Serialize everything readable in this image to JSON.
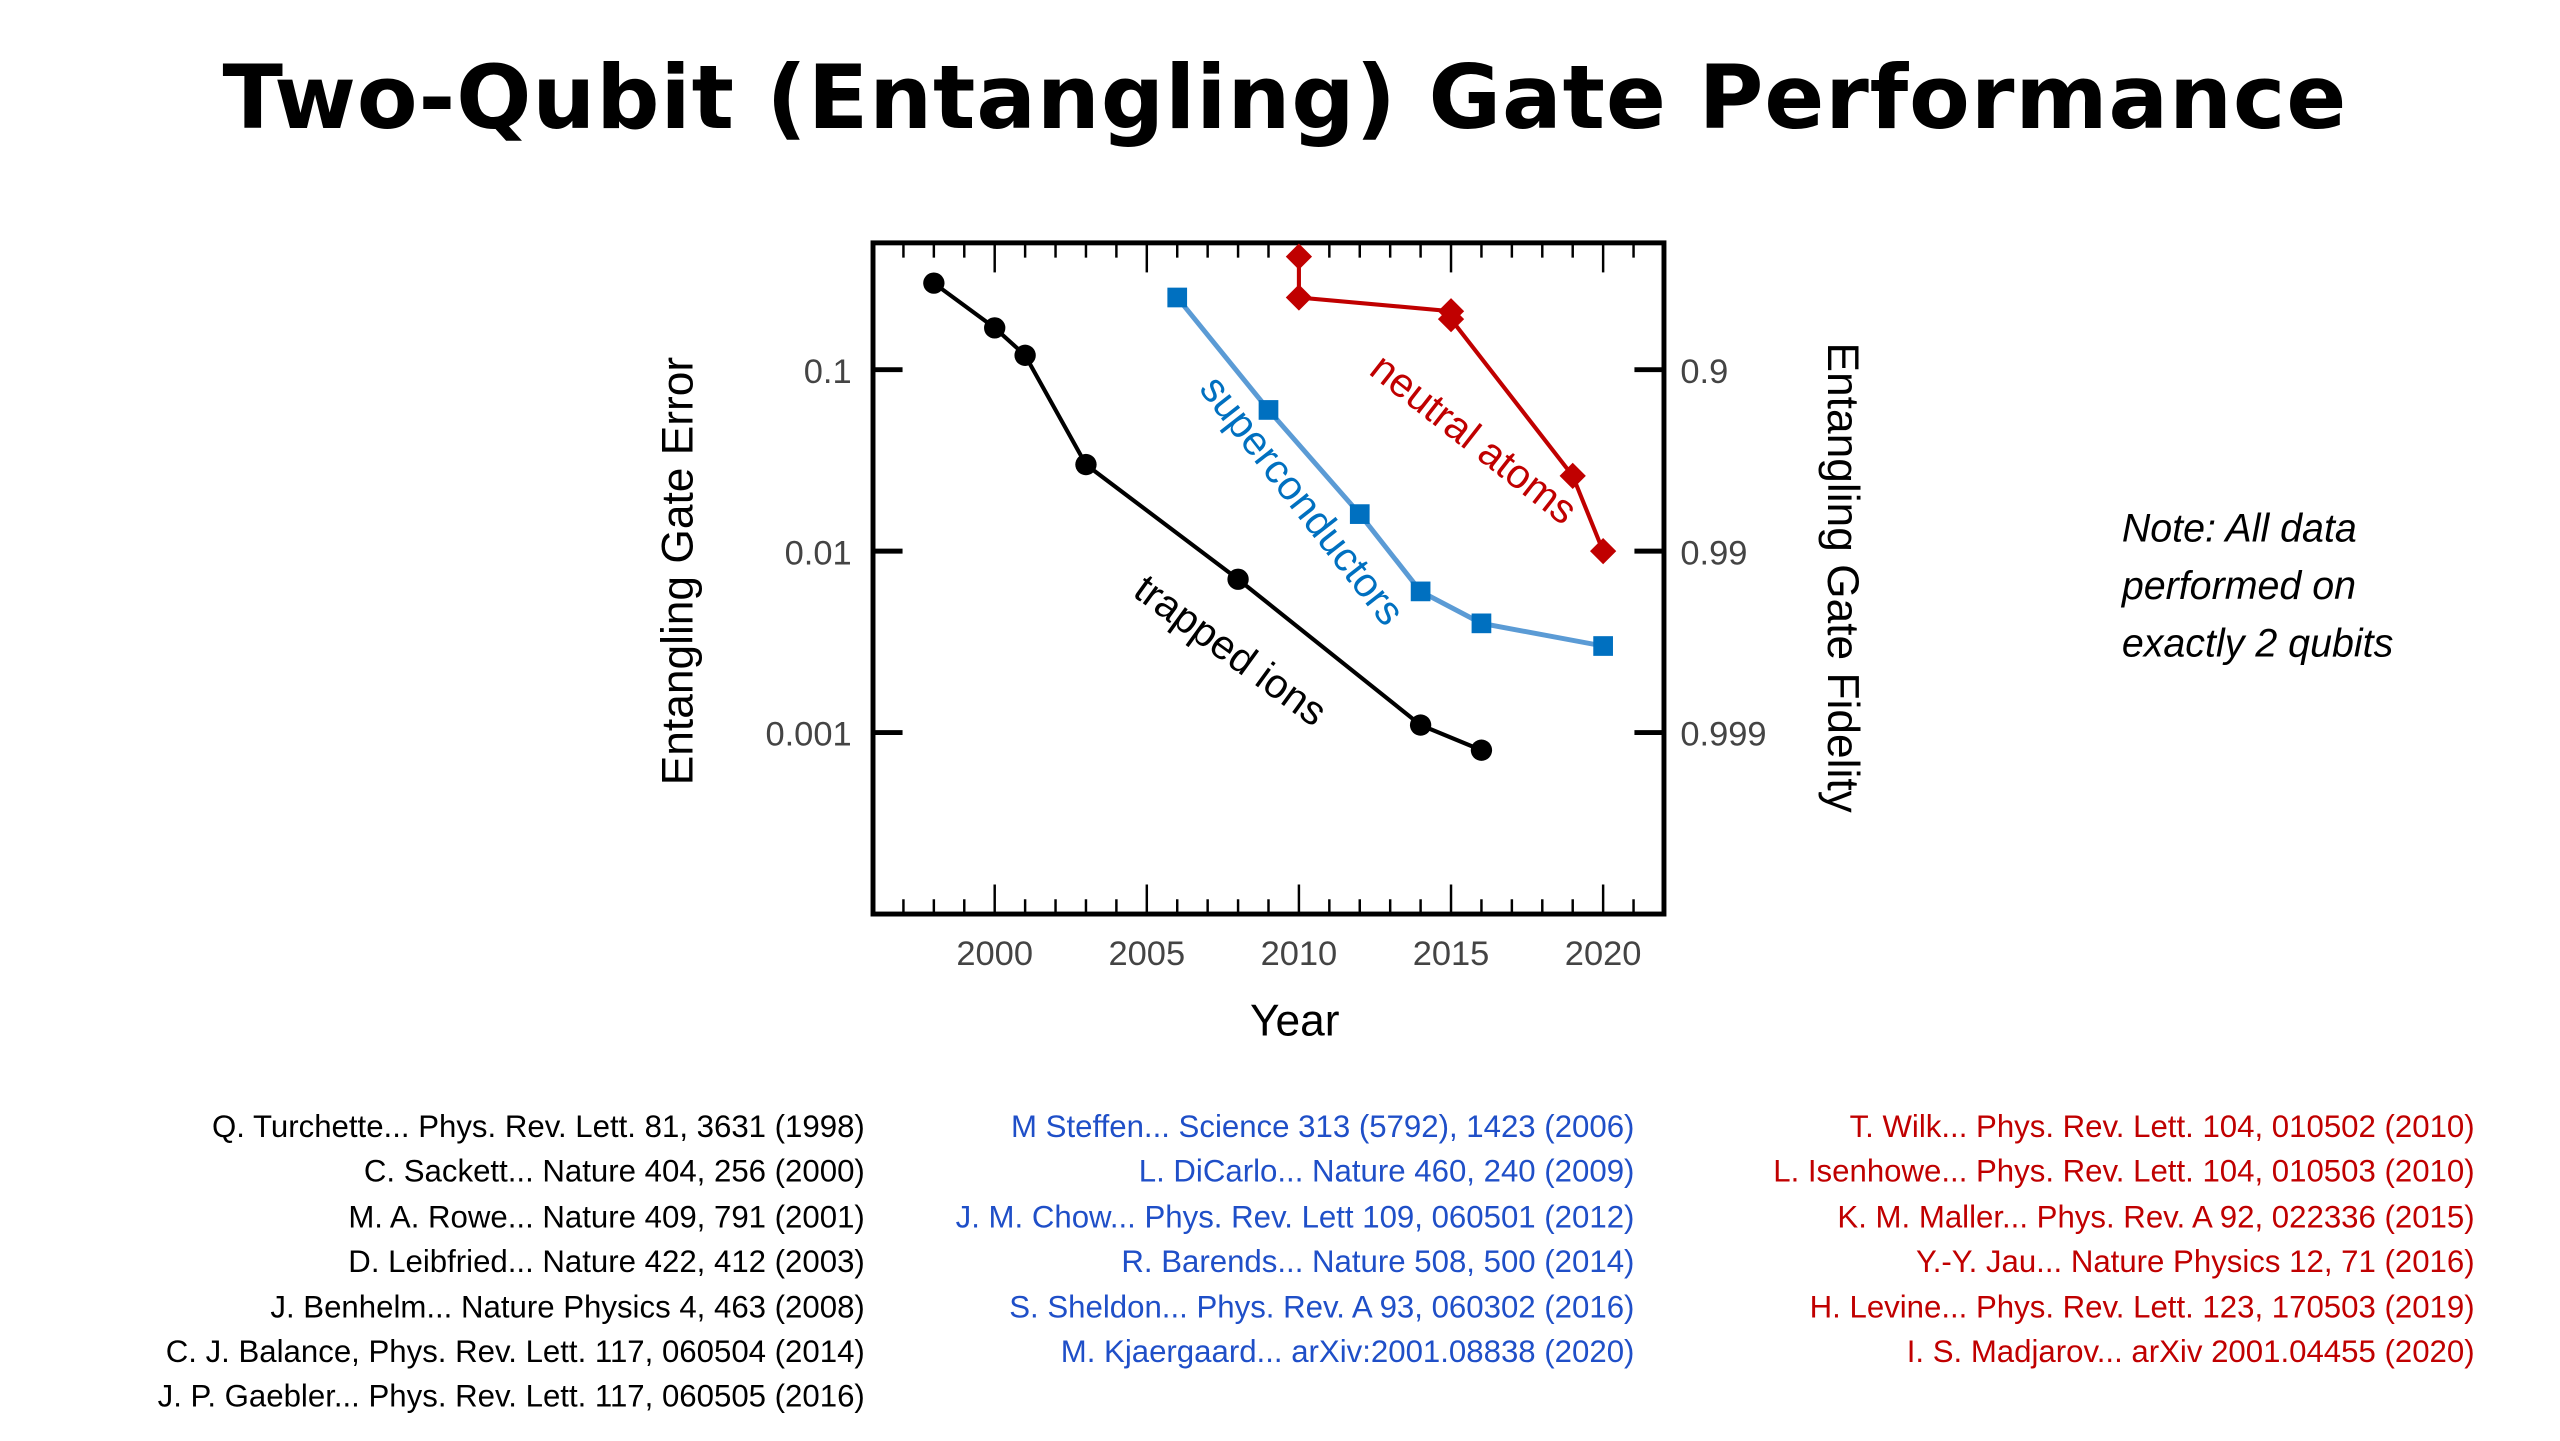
{
  "title": "Two-Qubit (Entangling) Gate Performance",
  "note": [
    "Note: All data",
    "performed on",
    "exactly 2 qubits"
  ],
  "colors": {
    "ions": "#000000",
    "superconductors_marker": "#0070c0",
    "superconductors_line": "#5b9bd5",
    "neutral_atoms": "#c00000",
    "ref_blue": "#1f4fc8",
    "ref_red": "#c00000"
  },
  "chart_data": {
    "type": "line",
    "title": "",
    "xlabel": "Year",
    "ylabel": "Entangling Gate Error",
    "ylabel_right": "Entangling Gate Fidelity",
    "y_scale": "log",
    "xlim": [
      1996,
      2022
    ],
    "ylim": [
      0.0001,
      0.5
    ],
    "x_ticks": [
      2000,
      2005,
      2010,
      2015,
      2020
    ],
    "x_tick_labels": [
      "2000",
      "2005",
      "2010",
      "2015",
      "2020"
    ],
    "y_ticks": [
      0.1,
      0.01,
      0.001
    ],
    "y_tick_labels": [
      "0.1",
      "0.01",
      "0.001"
    ],
    "y_right_tick_labels": [
      "0.9",
      "0.99",
      "0.999"
    ],
    "grid": false,
    "legend": "inline labels",
    "series": [
      {
        "name": "trapped ions",
        "marker": "circle",
        "color": "#000000",
        "x": [
          1998,
          2000,
          2001,
          2003,
          2008,
          2014,
          2016
        ],
        "y": [
          0.3,
          0.17,
          0.12,
          0.03,
          0.007,
          0.0011,
          0.0008
        ]
      },
      {
        "name": "superconductors",
        "marker": "square",
        "color": "#0070c0",
        "x": [
          2006,
          2009,
          2012,
          2014,
          2016,
          2020
        ],
        "y": [
          0.25,
          0.06,
          0.016,
          0.006,
          0.004,
          0.003
        ]
      },
      {
        "name": "neutral atoms",
        "marker": "diamond",
        "color": "#c00000",
        "x": [
          2010,
          2010,
          2015,
          2015,
          2019,
          2020
        ],
        "y": [
          0.42,
          0.25,
          0.21,
          0.19,
          0.026,
          0.01
        ]
      }
    ]
  },
  "references": {
    "trapped_ions": [
      "Q. Turchette... Phys. Rev. Lett. 81, 3631 (1998)",
      "C. Sackett... Nature 404, 256 (2000)",
      "M. A. Rowe... Nature 409, 791 (2001)",
      "D. Leibfried... Nature 422, 412 (2003)",
      "J. Benhelm... Nature Physics 4, 463 (2008)",
      "C. J. Balance, Phys. Rev. Lett. 117, 060504 (2014)",
      "J. P. Gaebler... Phys. Rev. Lett. 117, 060505 (2016)"
    ],
    "superconductors": [
      "M Steffen... Science 313 (5792), 1423 (2006)",
      "L. DiCarlo... Nature 460, 240 (2009)",
      "J. M. Chow... Phys. Rev. Lett 109, 060501 (2012)",
      "R. Barends... Nature 508, 500 (2014)",
      "S. Sheldon... Phys. Rev. A 93, 060302 (2016)",
      "M. Kjaergaard... arXiv:2001.08838 (2020)"
    ],
    "neutral_atoms": [
      "T. Wilk... Phys. Rev. Lett. 104, 010502 (2010)",
      "L. Isenhowe... Phys. Rev. Lett. 104, 010503 (2010)",
      "K. M. Maller... Phys. Rev. A 92, 022336 (2015)",
      "Y.-Y. Jau... Nature Physics 12, 71 (2016)",
      "H. Levine... Phys. Rev. Lett. 123, 170503 (2019)",
      "I. S. Madjarov... arXiv 2001.04455 (2020)"
    ]
  }
}
